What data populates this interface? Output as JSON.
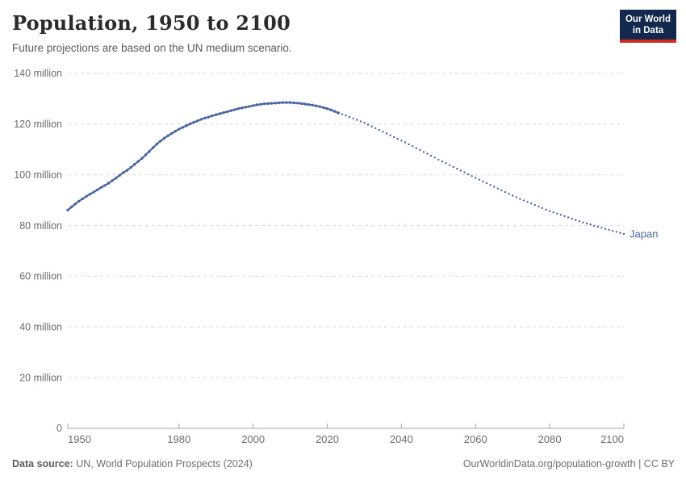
{
  "header": {
    "title": "Population, 1950 to 2100",
    "subtitle": "Future projections are based on the UN medium scenario."
  },
  "logo": {
    "line1": "Our World",
    "line2": "in Data",
    "bg_color": "#12294d",
    "accent_color": "#cf2d20"
  },
  "footer": {
    "source_label": "Data source:",
    "source_text": " UN, World Population Prospects (2024)",
    "credit_text": "OurWorldinData.org/population-growth | CC BY"
  },
  "chart_data": {
    "type": "line",
    "title": "Population, 1950 to 2100",
    "unit": "million",
    "xlim": [
      1950,
      2100
    ],
    "ylim": [
      0,
      140
    ],
    "grid": true,
    "legend_position": "end-of-line",
    "x_ticks": [
      1950,
      1980,
      2000,
      2020,
      2040,
      2060,
      2080,
      2100
    ],
    "y_ticks": [
      {
        "value": 0,
        "label": "0"
      },
      {
        "value": 20,
        "label": "20 million"
      },
      {
        "value": 40,
        "label": "40 million"
      },
      {
        "value": 60,
        "label": "60 million"
      },
      {
        "value": 80,
        "label": "80 million"
      },
      {
        "value": 100,
        "label": "100 million"
      },
      {
        "value": 120,
        "label": "120 million"
      },
      {
        "value": 140,
        "label": "140 million"
      }
    ],
    "series": [
      {
        "name": "Japan",
        "color": "#4a669f",
        "historical": {
          "start_year": 1950,
          "end_year": 2023,
          "style": "solid-with-markers",
          "values": [
            86.1,
            87.3,
            88.5,
            89.6,
            90.6,
            91.5,
            92.4,
            93.2,
            94.1,
            95.0,
            95.8,
            96.7,
            97.7,
            98.7,
            99.8,
            100.9,
            101.8,
            102.9,
            104.1,
            105.3,
            106.5,
            107.9,
            109.3,
            110.7,
            112.1,
            113.3,
            114.4,
            115.4,
            116.3,
            117.2,
            118.0,
            118.7,
            119.4,
            120.1,
            120.7,
            121.3,
            121.9,
            122.4,
            122.8,
            123.3,
            123.7,
            124.1,
            124.5,
            124.9,
            125.3,
            125.7,
            126.1,
            126.4,
            126.7,
            127.0,
            127.3,
            127.6,
            127.8,
            128.0,
            128.1,
            128.2,
            128.3,
            128.4,
            128.5,
            128.5,
            128.5,
            128.4,
            128.3,
            128.1,
            127.9,
            127.7,
            127.5,
            127.2,
            126.9,
            126.5,
            126.1,
            125.6,
            125.0,
            124.4
          ]
        },
        "projection": {
          "start_year": 2024,
          "end_year": 2100,
          "style": "dotted",
          "scenario": "UN medium scenario",
          "values": [
            123.9,
            123.4,
            122.8,
            122.2,
            121.7,
            121.1,
            120.5,
            119.8,
            119.1,
            118.4,
            117.7,
            117.0,
            116.3,
            115.6,
            114.9,
            114.2,
            113.5,
            112.8,
            112.0,
            111.3,
            110.5,
            109.8,
            109.0,
            108.3,
            107.5,
            106.8,
            106.0,
            105.3,
            104.6,
            103.8,
            103.1,
            102.4,
            101.7,
            101.0,
            100.2,
            99.5,
            98.8,
            98.1,
            97.4,
            96.7,
            96.0,
            95.3,
            94.6,
            93.9,
            93.2,
            92.5,
            91.8,
            91.2,
            90.5,
            89.9,
            89.3,
            88.7,
            88.1,
            87.5,
            86.9,
            86.3,
            85.7,
            85.2,
            84.7,
            84.2,
            83.7,
            83.2,
            82.7,
            82.2,
            81.7,
            81.2,
            80.8,
            80.4,
            79.9,
            79.5,
            79.1,
            78.7,
            78.3,
            77.9,
            77.5,
            77.1,
            76.7
          ]
        }
      }
    ]
  }
}
